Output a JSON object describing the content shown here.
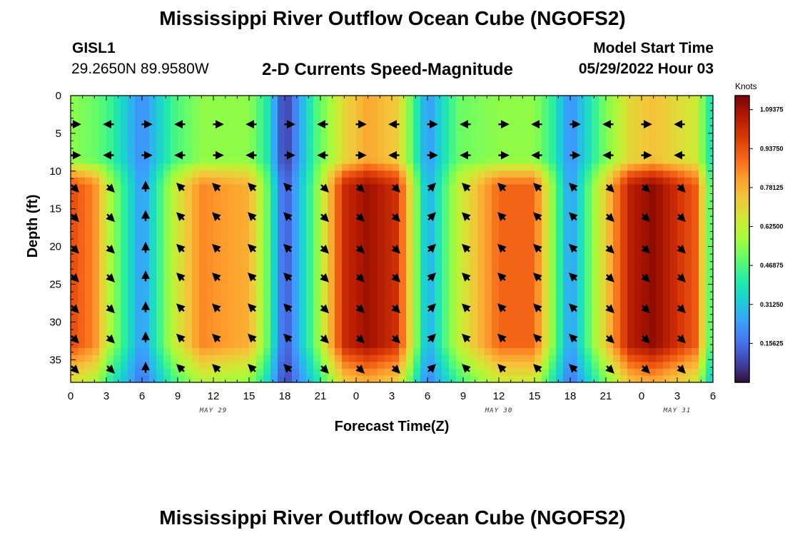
{
  "header": {
    "title": "Mississippi River Outflow Ocean Cube (NGOFS2)",
    "station_id": "GISL1",
    "coordinates": "29.2650N  89.9580W",
    "subtitle": "2-D Currents Speed-Magnitude",
    "model_start_label": "Model Start Time",
    "model_start_time": "05/29/2022 Hour 03"
  },
  "footer": {
    "title": "Mississippi River Outflow Ocean Cube (NGOFS2)"
  },
  "chart_data": {
    "type": "heatmap",
    "title": "2-D Currents Speed-Magnitude",
    "xlabel": "Forecast Time(Z)",
    "ylabel": "Depth (ft)",
    "x_range_hours": [
      0,
      54
    ],
    "ylim": [
      38,
      0
    ],
    "x_tick_labels": [
      "0",
      "3",
      "6",
      "9",
      "12",
      "15",
      "18",
      "21",
      "0",
      "3",
      "6",
      "9",
      "12",
      "15",
      "18",
      "21",
      "0",
      "3",
      "6"
    ],
    "x_tick_hours": [
      0,
      3,
      6,
      9,
      12,
      15,
      18,
      21,
      24,
      27,
      30,
      33,
      36,
      39,
      42,
      45,
      48,
      51,
      54
    ],
    "date_labels": [
      {
        "text": "MAY 29",
        "hour": 12
      },
      {
        "text": "MAY 30",
        "hour": 36
      },
      {
        "text": "MAY 31",
        "hour": 51
      }
    ],
    "y_ticks": [
      0,
      5,
      10,
      15,
      20,
      25,
      30,
      35
    ],
    "colorbar": {
      "units": "Knots",
      "min": 0.0,
      "max": 1.15,
      "tick_labels": [
        "1.09375",
        "0.93750",
        "0.78125",
        "0.62500",
        "0.46875",
        "0.31250",
        "0.15625"
      ],
      "tick_values": [
        1.09375,
        0.9375,
        0.78125,
        0.625,
        0.46875,
        0.3125,
        0.15625
      ],
      "colors": [
        "#30123b",
        "#4145ab",
        "#4675ed",
        "#39a2fc",
        "#1bcfd4",
        "#24eca6",
        "#61fc6c",
        "#a4fc3b",
        "#d1e834",
        "#f3c63a",
        "#fe9b2d",
        "#f36315",
        "#d93806",
        "#b11901",
        "#7a0402"
      ]
    },
    "time_series_speed": {
      "hours": [
        0,
        2,
        3.2,
        6,
        8.6,
        11,
        15,
        16.5,
        18,
        20.5,
        23,
        25,
        27.5,
        30,
        32.5,
        36,
        39,
        40.5,
        42,
        44.5,
        47,
        49,
        52.5,
        54
      ],
      "deep_speed_knots": [
        0.95,
        0.85,
        0.6,
        0.22,
        0.62,
        0.85,
        0.78,
        0.5,
        0.1,
        0.5,
        1.02,
        1.1,
        1.0,
        0.25,
        0.62,
        0.9,
        0.9,
        0.55,
        0.22,
        0.65,
        1.05,
        1.12,
        0.92,
        0.4
      ],
      "surface_speed_knots": [
        0.55,
        0.5,
        0.45,
        0.2,
        0.45,
        0.55,
        0.55,
        0.4,
        0.05,
        0.45,
        0.7,
        0.8,
        0.72,
        0.22,
        0.5,
        0.55,
        0.55,
        0.42,
        0.2,
        0.48,
        0.7,
        0.75,
        0.65,
        0.35
      ]
    },
    "vector_columns": [
      {
        "hour": 0,
        "direction": "se"
      },
      {
        "hour": 3,
        "direction": "se"
      },
      {
        "hour": 6,
        "direction": "n"
      },
      {
        "hour": 9,
        "direction": "nw"
      },
      {
        "hour": 12,
        "direction": "nw"
      },
      {
        "hour": 15,
        "direction": "nw"
      },
      {
        "hour": 18,
        "direction": "nw"
      },
      {
        "hour": 21,
        "direction": "se"
      },
      {
        "hour": 24,
        "direction": "se"
      },
      {
        "hour": 27,
        "direction": "se"
      },
      {
        "hour": 30,
        "direction": "ne"
      },
      {
        "hour": 33,
        "direction": "nw"
      },
      {
        "hour": 36,
        "direction": "nw"
      },
      {
        "hour": 39,
        "direction": "nw"
      },
      {
        "hour": 42,
        "direction": "nw"
      },
      {
        "hour": 45,
        "direction": "se"
      },
      {
        "hour": 48,
        "direction": "se"
      },
      {
        "hour": 51,
        "direction": "se"
      }
    ],
    "vector_depths_ft": [
      3.8,
      7.9,
      12.2,
      16.1,
      20.3,
      24.1,
      28.2,
      32.2,
      36.2
    ]
  }
}
